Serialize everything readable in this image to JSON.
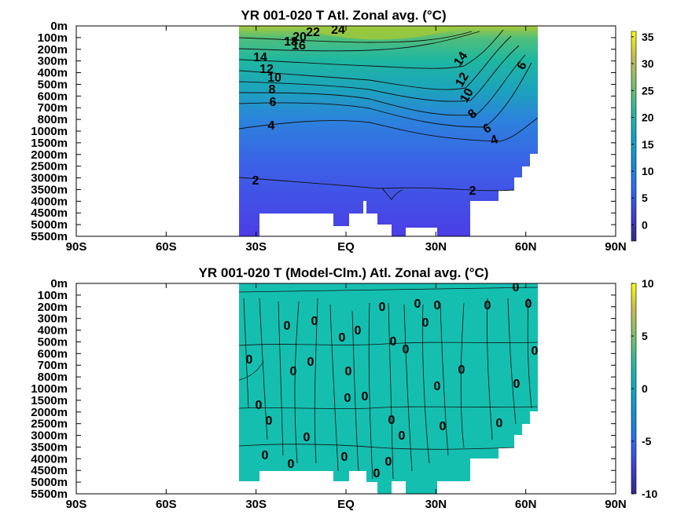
{
  "chart_data": [
    {
      "type": "heatmap",
      "title": "YR 001-020 T Atl. Zonal avg. (°C)",
      "x_ticks": [
        "90S",
        "60S",
        "30S",
        "EQ",
        "30N",
        "60N",
        "90N"
      ],
      "y_ticks": [
        "0m",
        "100m",
        "200m",
        "300m",
        "400m",
        "500m",
        "600m",
        "700m",
        "800m",
        "1000m",
        "1500m",
        "2000m",
        "2500m",
        "3000m",
        "3500m",
        "4000m",
        "4500m",
        "5000m",
        "5500m"
      ],
      "colorbar": {
        "min": -3,
        "max": 36,
        "ticks": [
          35,
          30,
          25,
          20,
          15,
          10,
          5,
          0
        ]
      },
      "contour_labels": [
        "24",
        "22",
        "20",
        "18",
        "16",
        "14",
        "12",
        "10",
        "8",
        "6",
        "4",
        "2",
        "14",
        "12",
        "10",
        "8",
        "6",
        "4",
        "2",
        "6"
      ]
    },
    {
      "type": "heatmap",
      "title": "YR 001-020 T (Model-Clm.) Atl. Zonal avg. (°C)",
      "x_ticks": [
        "90S",
        "60S",
        "30S",
        "EQ",
        "30N",
        "60N",
        "90N"
      ],
      "y_ticks": [
        "0m",
        "100m",
        "200m",
        "300m",
        "400m",
        "500m",
        "600m",
        "700m",
        "800m",
        "1000m",
        "1500m",
        "2000m",
        "2500m",
        "3000m",
        "3500m",
        "4000m",
        "4500m",
        "5000m",
        "5500m"
      ],
      "colorbar": {
        "min": -10,
        "max": 10,
        "ticks": [
          10,
          5,
          0,
          -5,
          -10
        ]
      },
      "contour_labels": [
        "0"
      ]
    }
  ]
}
